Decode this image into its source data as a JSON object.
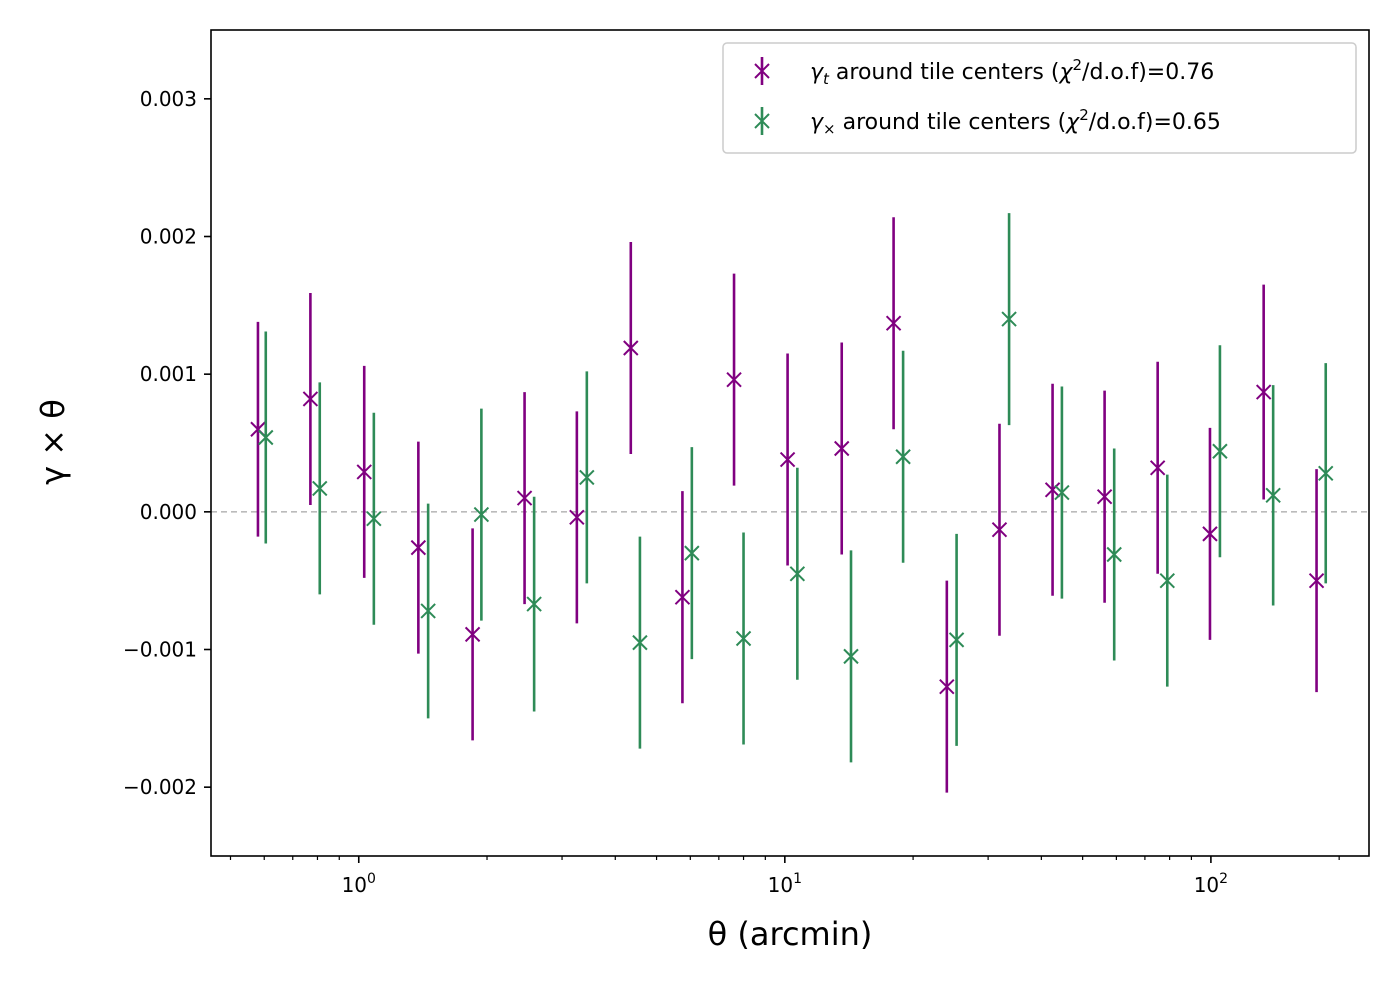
{
  "chart_data": {
    "type": "scatter",
    "title": "",
    "xlabel": "θ (arcmin)",
    "ylabel": "γ × θ",
    "xscale": "log",
    "xlim": [
      0.45,
      235
    ],
    "ylim": [
      -0.0025,
      0.0035
    ],
    "xticks": [
      {
        "value": 1,
        "label_base": "10",
        "label_exp": "0"
      },
      {
        "value": 10,
        "label_base": "10",
        "label_exp": "1"
      },
      {
        "value": 100,
        "label_base": "10",
        "label_exp": "2"
      }
    ],
    "yticks": [
      {
        "value": -0.002,
        "label": "−0.002"
      },
      {
        "value": -0.001,
        "label": "−0.001"
      },
      {
        "value": 0.0,
        "label": "0.000"
      },
      {
        "value": 0.001,
        "label": "0.001"
      },
      {
        "value": 0.002,
        "label": "0.002"
      },
      {
        "value": 0.003,
        "label": "0.003"
      }
    ],
    "reference_line": {
      "y": 0,
      "style": "dashed",
      "color": "#bbbbbb"
    },
    "legend_position": "top-right",
    "series": [
      {
        "name": "gamma_t",
        "legend_symbol": "γ",
        "legend_sub": "t",
        "legend_text": " around tile centers (",
        "legend_chi": "χ",
        "legend_sup": "2",
        "legend_tail": "/d.o.f)=0.76",
        "color": "#800080",
        "x": [
          0.58,
          0.77,
          1.03,
          1.38,
          1.85,
          2.45,
          3.25,
          4.35,
          5.75,
          7.6,
          10.15,
          13.6,
          18.0,
          24.0,
          31.9,
          42.5,
          56.3,
          75.0,
          99.5,
          133.0,
          177.0
        ],
        "y": [
          0.0006,
          0.00082,
          0.00029,
          -0.00026,
          -0.00089,
          0.0001,
          -4e-05,
          0.00119,
          -0.00062,
          0.00096,
          0.00038,
          0.00046,
          0.00137,
          -0.00127,
          -0.00013,
          0.00016,
          0.00011,
          0.00032,
          -0.00016,
          0.00087,
          -0.0005
        ],
        "yerr": [
          0.00078,
          0.00077,
          0.00077,
          0.00077,
          0.00077,
          0.00077,
          0.00077,
          0.00077,
          0.00077,
          0.00077,
          0.00077,
          0.00077,
          0.00077,
          0.00077,
          0.00077,
          0.00077,
          0.00077,
          0.00077,
          0.00077,
          0.00078,
          0.00081
        ]
      },
      {
        "name": "gamma_x",
        "legend_symbol": "γ",
        "legend_sub": "×",
        "legend_text": "  around tile centers (",
        "legend_chi": "χ",
        "legend_sup": "2",
        "legend_tail": "/d.o.f)=0.65",
        "color": "#2e8b57",
        "x": [
          0.605,
          0.81,
          1.085,
          1.455,
          1.94,
          2.58,
          3.43,
          4.57,
          6.05,
          8.0,
          10.7,
          14.3,
          18.95,
          25.3,
          33.6,
          44.7,
          59.3,
          79.0,
          105.0,
          140.0,
          186.0
        ],
        "y": [
          0.00054,
          0.00017,
          -5e-05,
          -0.00072,
          -2e-05,
          -0.00067,
          0.00025,
          -0.00095,
          -0.0003,
          -0.00092,
          -0.00045,
          -0.00105,
          0.0004,
          -0.00093,
          0.0014,
          0.00014,
          -0.00031,
          -0.0005,
          0.00044,
          0.00012,
          0.00028
        ]
      }
    ],
    "gamma_x_yerr": [
      0.00077,
      0.00077,
      0.00077,
      0.00078,
      0.00077,
      0.00078,
      0.00077,
      0.00077,
      0.00077,
      0.00077,
      0.00077,
      0.00077,
      0.00077,
      0.00077,
      0.00077,
      0.00077,
      0.00077,
      0.00077,
      0.00077,
      0.0008,
      0.0008
    ]
  }
}
